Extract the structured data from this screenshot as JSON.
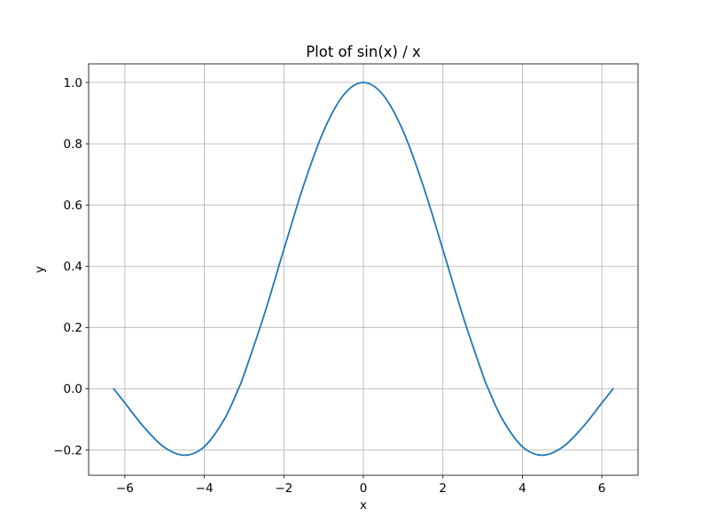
{
  "chart_data": {
    "type": "line",
    "title": "Plot of sin(x) / x",
    "xlabel": "x",
    "ylabel": "y",
    "xlim": [
      -6.912,
      6.912
    ],
    "ylim": [
      -0.2826,
      1.0609
    ],
    "xticks": [
      -6,
      -4,
      -2,
      0,
      2,
      4,
      6
    ],
    "xtick_labels": [
      "−6",
      "−4",
      "−2",
      "0",
      "2",
      "4",
      "6"
    ],
    "yticks": [
      -0.2,
      0.0,
      0.2,
      0.4,
      0.6,
      0.8,
      1.0
    ],
    "ytick_labels": [
      "−0.2",
      "0.0",
      "0.2",
      "0.4",
      "0.6",
      "0.8",
      "1.0"
    ],
    "grid": true,
    "series": [
      {
        "color": "#1f77b4",
        "x": [
          -6.2832,
          -6.0,
          -5.5,
          -5.0,
          -4.4934,
          -4.0,
          -3.5,
          -3.1416,
          -3.0,
          -2.5,
          -2.0,
          -1.5,
          -1.0,
          -0.5,
          0.0,
          0.5,
          1.0,
          1.5,
          2.0,
          2.5,
          3.0,
          3.1416,
          3.5,
          4.0,
          4.4934,
          5.0,
          5.5,
          6.0,
          6.2832
        ],
        "y": [
          0.0,
          -0.0466,
          -0.1283,
          -0.1918,
          -0.2172,
          -0.1892,
          -0.1002,
          0.0,
          0.047,
          0.2394,
          0.4546,
          0.665,
          0.8415,
          0.9589,
          1.0,
          0.9589,
          0.8415,
          0.665,
          0.4546,
          0.2394,
          0.047,
          0.0,
          -0.1002,
          -0.1892,
          -0.2172,
          -0.1918,
          -0.1283,
          -0.0466,
          0.0
        ]
      }
    ]
  }
}
